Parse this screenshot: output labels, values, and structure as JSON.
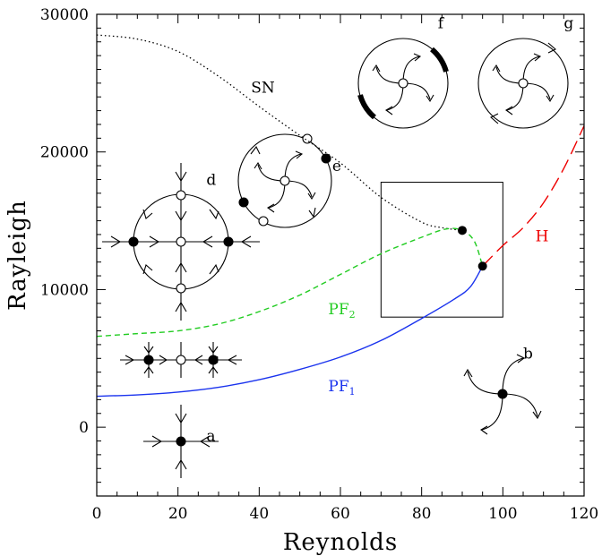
{
  "chart_data": {
    "type": "line",
    "xlabel": "Reynolds",
    "ylabel": "Rayleigh",
    "xlim": [
      0,
      120
    ],
    "ylim": [
      -5000,
      30000
    ],
    "xticks": [
      0,
      20,
      40,
      60,
      80,
      100,
      120
    ],
    "yticks": [
      0,
      10000,
      20000,
      30000
    ],
    "series": [
      {
        "label": "SN",
        "color": "#000000",
        "dash": "dotted",
        "points": [
          [
            0,
            28500
          ],
          [
            10,
            28200
          ],
          [
            20,
            27300
          ],
          [
            30,
            25500
          ],
          [
            40,
            23300
          ],
          [
            50,
            21200
          ],
          [
            60,
            19200
          ],
          [
            70,
            16700
          ],
          [
            80,
            14900
          ],
          [
            85,
            14500
          ],
          [
            90,
            14300
          ]
        ],
        "label_pos": [
          38,
          24300
        ]
      },
      {
        "label": "PF",
        "sub": "2",
        "color": "#22cc22",
        "dash": "dashed",
        "points": [
          [
            0,
            6600
          ],
          [
            10,
            6800
          ],
          [
            20,
            7000
          ],
          [
            30,
            7500
          ],
          [
            40,
            8400
          ],
          [
            50,
            9600
          ],
          [
            60,
            11100
          ],
          [
            70,
            12600
          ],
          [
            80,
            13800
          ],
          [
            86,
            14400
          ],
          [
            90,
            14300
          ],
          [
            93,
            13500
          ],
          [
            95,
            11700
          ]
        ],
        "label_pos": [
          57,
          8200
        ]
      },
      {
        "label": "PF",
        "sub": "1",
        "color": "#1a33ee",
        "dash": "solid",
        "points": [
          [
            0,
            2250
          ],
          [
            10,
            2350
          ],
          [
            20,
            2550
          ],
          [
            30,
            2900
          ],
          [
            40,
            3450
          ],
          [
            50,
            4200
          ],
          [
            60,
            5100
          ],
          [
            70,
            6300
          ],
          [
            80,
            7900
          ],
          [
            88,
            9300
          ],
          [
            92,
            10200
          ],
          [
            95,
            11700
          ]
        ],
        "label_pos": [
          57,
          2600
        ]
      },
      {
        "label": "H",
        "color": "#ee0000",
        "dash": "longdash",
        "points": [
          [
            95,
            11700
          ],
          [
            100,
            13200
          ],
          [
            105,
            14500
          ],
          [
            110,
            16300
          ],
          [
            115,
            18800
          ],
          [
            120,
            21900
          ]
        ],
        "label_pos": [
          108,
          13500
        ]
      }
    ],
    "bifurcation_points": [
      [
        90,
        14300
      ],
      [
        95,
        11700
      ]
    ],
    "inset_box": {
      "x": [
        70,
        100
      ],
      "y": [
        8000,
        17800
      ]
    },
    "panel_letters": {
      "a": [
        27,
        -1000
      ],
      "b": [
        105,
        5000
      ],
      "c": [
        28,
        4600
      ],
      "d": [
        27,
        17600
      ],
      "e": [
        58,
        18600
      ],
      "f": [
        84,
        29000
      ],
      "g": [
        115,
        29000
      ]
    }
  }
}
